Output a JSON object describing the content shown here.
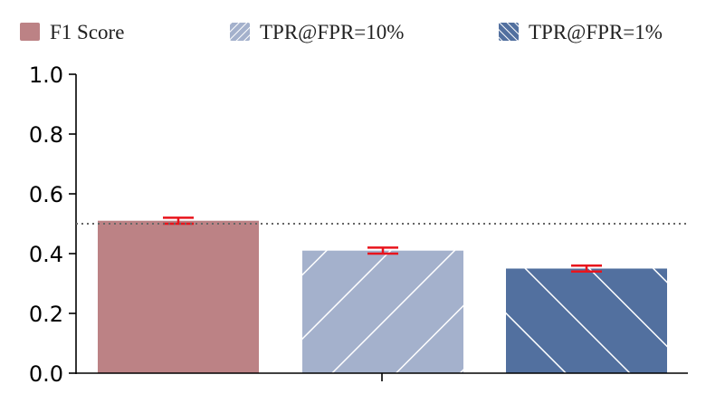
{
  "chart_data": {
    "type": "bar",
    "categories": [
      ""
    ],
    "series": [
      {
        "name": "F1 Score",
        "values": [
          0.51
        ],
        "error": [
          0.01
        ],
        "color": "#bc8285",
        "pattern": "solid"
      },
      {
        "name": "TPR@FPR=10%",
        "values": [
          0.41
        ],
        "error": [
          0.01
        ],
        "color": "#a4b1cc",
        "pattern": "forward-diagonal"
      },
      {
        "name": "TPR@FPR=1%",
        "values": [
          0.35
        ],
        "error": [
          0.01
        ],
        "color": "#52709f",
        "pattern": "backward-diagonal"
      }
    ],
    "reference_line": {
      "value": 0.5,
      "style": "dotted",
      "color": "#666666"
    },
    "ylim": [
      0,
      1
    ],
    "yticks": [
      "0.0",
      "0.2",
      "0.4",
      "0.6",
      "0.8",
      "1.0"
    ],
    "ytick_values": [
      0,
      0.2,
      0.4,
      0.6,
      0.8,
      1.0
    ],
    "error_bar_color": "#e8141c",
    "legend_position": "top",
    "grid": false,
    "title": "",
    "xlabel": "",
    "ylabel": ""
  }
}
